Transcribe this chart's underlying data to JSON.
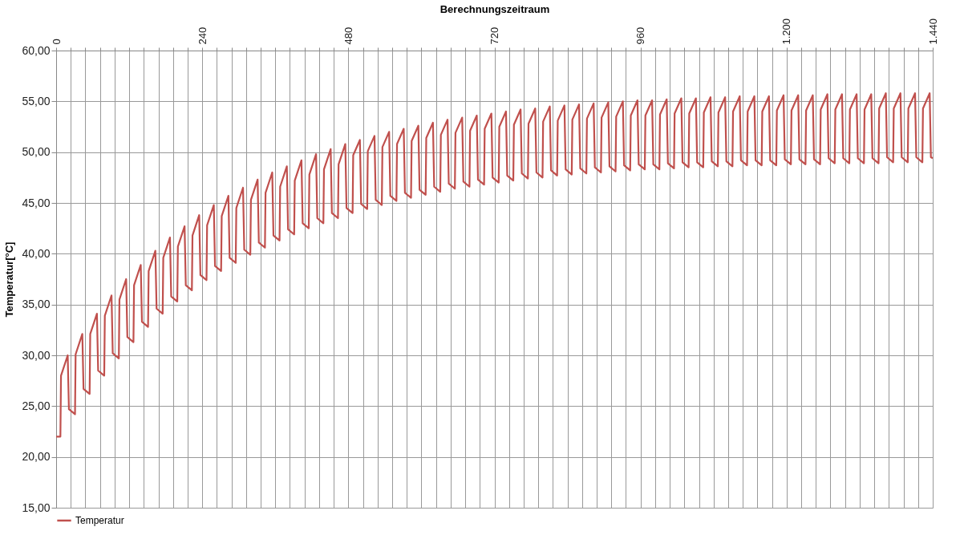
{
  "chart_data": {
    "type": "line",
    "xlabel": "Berechnungszeitraum",
    "ylabel": "Temperatur[°C]",
    "xlim": [
      0,
      1440
    ],
    "ylim": [
      15,
      60
    ],
    "xticks": [
      0,
      {
        "value": 24,
        "label": null
      },
      {
        "value": 48,
        "label": null
      },
      {
        "value": 72,
        "label": null
      },
      {
        "value": 96,
        "label": null
      },
      {
        "value": 120,
        "label": null
      },
      {
        "value": 144,
        "label": null
      },
      {
        "value": 168,
        "label": null
      },
      {
        "value": 192,
        "label": null
      },
      {
        "value": 216,
        "label": null
      },
      240,
      {
        "value": 264,
        "label": null
      },
      {
        "value": 288,
        "label": null
      },
      {
        "value": 312,
        "label": null
      },
      {
        "value": 336,
        "label": null
      },
      {
        "value": 360,
        "label": null
      },
      {
        "value": 384,
        "label": null
      },
      {
        "value": 408,
        "label": null
      },
      {
        "value": 432,
        "label": null
      },
      {
        "value": 456,
        "label": null
      },
      480,
      {
        "value": 504,
        "label": null
      },
      {
        "value": 528,
        "label": null
      },
      {
        "value": 552,
        "label": null
      },
      {
        "value": 576,
        "label": null
      },
      {
        "value": 600,
        "label": null
      },
      {
        "value": 624,
        "label": null
      },
      {
        "value": 648,
        "label": null
      },
      {
        "value": 672,
        "label": null
      },
      {
        "value": 696,
        "label": null
      },
      720,
      {
        "value": 744,
        "label": null
      },
      {
        "value": 768,
        "label": null
      },
      {
        "value": 792,
        "label": null
      },
      {
        "value": 816,
        "label": null
      },
      {
        "value": 840,
        "label": null
      },
      {
        "value": 864,
        "label": null
      },
      {
        "value": 888,
        "label": null
      },
      {
        "value": 912,
        "label": null
      },
      {
        "value": 936,
        "label": null
      },
      960,
      {
        "value": 984,
        "label": null
      },
      {
        "value": 1008,
        "label": null
      },
      {
        "value": 1032,
        "label": null
      },
      {
        "value": 1056,
        "label": null
      },
      {
        "value": 1080,
        "label": null
      },
      {
        "value": 1104,
        "label": null
      },
      {
        "value": 1128,
        "label": null
      },
      {
        "value": 1152,
        "label": null
      },
      {
        "value": 1176,
        "label": null
      },
      {
        "value": 1200,
        "label": "1.200"
      },
      {
        "value": 1224,
        "label": null
      },
      {
        "value": 1248,
        "label": null
      },
      {
        "value": 1272,
        "label": null
      },
      {
        "value": 1296,
        "label": null
      },
      {
        "value": 1320,
        "label": null
      },
      {
        "value": 1344,
        "label": null
      },
      {
        "value": 1368,
        "label": null
      },
      {
        "value": 1392,
        "label": null
      },
      {
        "value": 1416,
        "label": null
      },
      {
        "value": 1440,
        "label": "1.440"
      }
    ],
    "yticks": [
      {
        "value": 15,
        "label": "15,00"
      },
      {
        "value": 20,
        "label": "20,00"
      },
      {
        "value": 25,
        "label": "25,00"
      },
      {
        "value": 30,
        "label": "30,00"
      },
      {
        "value": 35,
        "label": "35,00"
      },
      {
        "value": 40,
        "label": "40,00"
      },
      {
        "value": 45,
        "label": "45,00"
      },
      {
        "value": 50,
        "label": "50,00"
      },
      {
        "value": 55,
        "label": "55,00"
      },
      {
        "value": 60,
        "label": "60,00"
      }
    ],
    "grid": true,
    "legend": "bottom",
    "series": [
      {
        "name": "Temperatur",
        "color": "#c0504d",
        "x": [
          0,
          7,
          8,
          19,
          21,
          31,
          32,
          43,
          45,
          55,
          56,
          67,
          69,
          79,
          80,
          91,
          93,
          103,
          104,
          115,
          117,
          127,
          128,
          139,
          141,
          151,
          152,
          163,
          165,
          175,
          176,
          187,
          189,
          199,
          200,
          211,
          213,
          223,
          224,
          235,
          237,
          247,
          248,
          259,
          261,
          271,
          272,
          283,
          285,
          295,
          296,
          307,
          309,
          319,
          320,
          331,
          333,
          343,
          344,
          355,
          357,
          367,
          368,
          379,
          381,
          391,
          392,
          403,
          405,
          415,
          416,
          427,
          429,
          439,
          440,
          451,
          453,
          463,
          464,
          475,
          477,
          487,
          488,
          499,
          501,
          511,
          512,
          523,
          525,
          535,
          536,
          547,
          549,
          559,
          560,
          571,
          573,
          583,
          584,
          595,
          597,
          607,
          608,
          619,
          621,
          631,
          632,
          643,
          645,
          655,
          656,
          667,
          669,
          679,
          680,
          691,
          693,
          703,
          704,
          715,
          717,
          727,
          728,
          739,
          741,
          751,
          752,
          763,
          765,
          775,
          776,
          787,
          789,
          799,
          800,
          811,
          813,
          823,
          824,
          835,
          837,
          847,
          848,
          859,
          861,
          871,
          872,
          883,
          885,
          895,
          896,
          907,
          909,
          919,
          920,
          931,
          933,
          943,
          944,
          955,
          957,
          967,
          968,
          979,
          981,
          991,
          992,
          1003,
          1005,
          1015,
          1016,
          1027,
          1029,
          1039,
          1040,
          1051,
          1053,
          1063,
          1064,
          1075,
          1077,
          1087,
          1088,
          1099,
          1101,
          1111,
          1112,
          1123,
          1125,
          1135,
          1136,
          1147,
          1149,
          1159,
          1160,
          1171,
          1173,
          1183,
          1184,
          1195,
          1197,
          1207,
          1208,
          1219,
          1221,
          1231,
          1232,
          1243,
          1245,
          1255,
          1256,
          1267,
          1269,
          1279,
          1280,
          1291,
          1293,
          1303,
          1304,
          1315,
          1317,
          1327,
          1328,
          1339,
          1341,
          1351,
          1352,
          1363,
          1365,
          1375,
          1376,
          1387,
          1389,
          1399,
          1400,
          1411,
          1413,
          1423,
          1424,
          1435,
          1437,
          1440
        ],
        "values": [
          22.0,
          22.0,
          28.0,
          30.0,
          24.7,
          24.2,
          30.1,
          32.1,
          26.7,
          26.2,
          32.1,
          34.1,
          28.5,
          28.0,
          33.9,
          35.9,
          30.2,
          29.7,
          35.5,
          37.5,
          31.8,
          31.3,
          36.9,
          38.9,
          33.3,
          32.8,
          38.3,
          40.3,
          34.6,
          34.1,
          39.6,
          41.6,
          35.8,
          35.3,
          40.7,
          42.7,
          36.9,
          36.4,
          41.8,
          43.8,
          37.9,
          37.4,
          42.8,
          44.8,
          38.8,
          38.3,
          43.7,
          45.7,
          39.6,
          39.1,
          44.5,
          46.5,
          40.4,
          39.9,
          45.3,
          47.3,
          41.1,
          40.6,
          46.0,
          48.0,
          41.8,
          41.3,
          46.6,
          48.6,
          42.4,
          41.9,
          47.2,
          49.2,
          43.0,
          42.5,
          47.8,
          49.8,
          43.5,
          43.0,
          48.3,
          50.3,
          44.0,
          43.5,
          48.8,
          50.8,
          44.5,
          44.0,
          49.7,
          51.2,
          44.9,
          44.4,
          50.1,
          51.6,
          45.3,
          44.8,
          50.5,
          52.0,
          45.7,
          45.2,
          50.8,
          52.3,
          46.0,
          45.5,
          51.1,
          52.6,
          46.3,
          45.8,
          51.4,
          52.9,
          46.6,
          46.1,
          51.7,
          53.2,
          46.9,
          46.4,
          51.9,
          53.4,
          47.1,
          46.6,
          52.1,
          53.6,
          47.3,
          46.8,
          52.3,
          53.8,
          47.5,
          47.0,
          52.5,
          54.0,
          47.7,
          47.2,
          52.7,
          54.2,
          47.9,
          47.4,
          52.8,
          54.3,
          48.0,
          47.5,
          53.0,
          54.5,
          48.2,
          47.7,
          53.1,
          54.6,
          48.3,
          47.8,
          53.2,
          54.7,
          48.4,
          47.9,
          53.3,
          54.8,
          48.5,
          48.0,
          53.4,
          54.9,
          48.6,
          48.1,
          53.5,
          55.0,
          48.7,
          48.2,
          53.6,
          55.1,
          48.8,
          48.3,
          53.6,
          55.1,
          48.8,
          48.3,
          53.7,
          55.2,
          48.9,
          48.4,
          53.8,
          55.3,
          49.0,
          48.5,
          53.8,
          55.3,
          49.0,
          48.5,
          53.9,
          55.4,
          49.1,
          48.6,
          53.9,
          55.4,
          49.1,
          48.6,
          54.0,
          55.5,
          49.2,
          48.7,
          54.0,
          55.5,
          49.2,
          48.7,
          54.0,
          55.5,
          49.2,
          48.7,
          54.1,
          55.6,
          49.3,
          48.8,
          54.1,
          55.6,
          49.3,
          48.8,
          54.1,
          55.6,
          49.3,
          48.8,
          54.2,
          55.7,
          49.4,
          48.9,
          54.2,
          55.7,
          49.4,
          48.9,
          54.2,
          55.7,
          49.4,
          48.9,
          54.2,
          55.7,
          49.4,
          48.9,
          54.3,
          55.8,
          49.5,
          49.0,
          54.3,
          55.8,
          49.5,
          49.0,
          54.3,
          55.8,
          49.5,
          49.0,
          54.3,
          55.8,
          49.5,
          49.4
        ]
      }
    ]
  }
}
